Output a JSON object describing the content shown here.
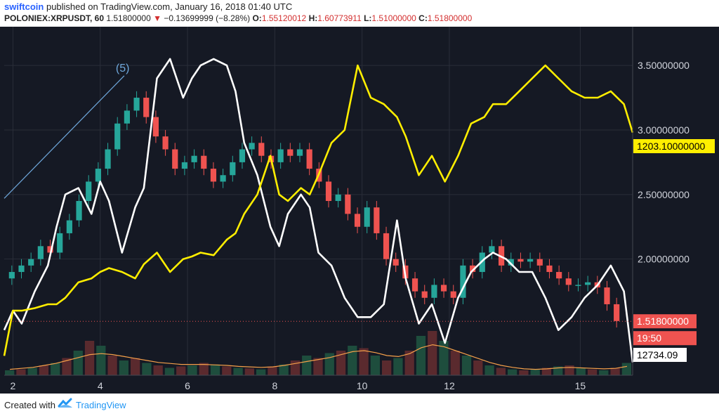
{
  "header": {
    "author": "swiftcoin",
    "published_text": "published on TradingView.com, January 16, 2018 01:40 UTC",
    "symbol": "POLONIEX:XRPUSDT, 60",
    "last_price": "1.51800000",
    "change_arrow": "▼",
    "change": "−0.13699999 (−8.28%)",
    "o_label": "O:",
    "o_value": "1.55120012",
    "h_label": "H:",
    "h_value": "1.60773911",
    "l_label": "L:",
    "l_value": "1.51000000",
    "c_label": "C:",
    "c_value": "1.51800000"
  },
  "footer": {
    "created_with": "Created with",
    "brand": "TradingView"
  },
  "colors": {
    "background": "#151924",
    "grid": "#2a2e39",
    "up": "#26a69a",
    "down": "#ef5350",
    "yellow": "#ffee00",
    "white": "#ffffff",
    "volume_ma": "#f5a04a",
    "annotation": "#6fa8dc"
  },
  "chart_data": {
    "type": "line",
    "x_ticks": [
      "2",
      "4",
      "6",
      "8",
      "10",
      "12",
      "15"
    ],
    "y_ticks": [
      "3.50000000",
      "3.00000000",
      "2.50000000",
      "2.00000000"
    ],
    "ylim": [
      1.1,
      3.8
    ],
    "xlim": [
      1.8,
      16.2
    ],
    "annotation": "(5)",
    "price_labels": {
      "yellow": "1203.10000000",
      "last": "1.51800000",
      "countdown": "19:50",
      "white": "12734.09"
    },
    "series": [
      {
        "color": "white",
        "x": [
          1.8,
          2.0,
          2.2,
          2.5,
          2.8,
          3.0,
          3.2,
          3.5,
          3.8,
          4.0,
          4.2,
          4.5,
          4.8,
          5.0,
          5.3,
          5.6,
          5.9,
          6.1,
          6.3,
          6.6,
          6.9,
          7.1,
          7.3,
          7.6,
          7.9,
          8.1,
          8.3,
          8.6,
          8.8,
          9.0,
          9.3,
          9.6,
          9.9,
          10.2,
          10.5,
          10.8,
          11.0,
          11.3,
          11.6,
          11.9,
          12.2,
          12.5,
          12.8,
          13.0,
          13.3,
          13.6,
          13.9,
          14.2,
          14.5,
          14.8,
          15.1,
          15.4,
          15.7,
          16.0,
          16.2
        ],
        "y": [
          1.45,
          1.6,
          1.5,
          1.75,
          1.95,
          2.25,
          2.5,
          2.55,
          2.35,
          2.6,
          2.45,
          2.05,
          2.4,
          2.55,
          3.4,
          3.55,
          3.25,
          3.4,
          3.5,
          3.55,
          3.5,
          3.3,
          2.9,
          2.65,
          2.25,
          2.1,
          2.35,
          2.5,
          2.4,
          2.05,
          1.95,
          1.7,
          1.55,
          1.55,
          1.65,
          2.3,
          1.85,
          1.5,
          1.65,
          1.35,
          1.7,
          1.9,
          2.0,
          2.05,
          2.0,
          1.9,
          1.9,
          1.7,
          1.45,
          1.55,
          1.7,
          1.8,
          1.95,
          1.75,
          1.2
        ]
      },
      {
        "color": "yellow",
        "x": [
          1.8,
          2.0,
          2.2,
          2.5,
          2.8,
          3.0,
          3.2,
          3.5,
          3.8,
          4.0,
          4.2,
          4.5,
          4.8,
          5.0,
          5.3,
          5.6,
          5.9,
          6.1,
          6.3,
          6.6,
          6.9,
          7.1,
          7.3,
          7.6,
          7.9,
          8.1,
          8.3,
          8.6,
          8.8,
          9.0,
          9.3,
          9.6,
          9.9,
          10.2,
          10.5,
          10.8,
          11.0,
          11.3,
          11.6,
          11.9,
          12.2,
          12.5,
          12.8,
          13.0,
          13.3,
          13.6,
          13.9,
          14.2,
          14.5,
          14.8,
          15.1,
          15.4,
          15.7,
          16.0,
          16.2
        ],
        "y": [
          1.25,
          1.6,
          1.6,
          1.62,
          1.65,
          1.65,
          1.7,
          1.82,
          1.85,
          1.9,
          1.93,
          1.9,
          1.85,
          1.96,
          2.05,
          1.9,
          2.0,
          2.02,
          2.05,
          2.03,
          2.15,
          2.2,
          2.35,
          2.5,
          2.8,
          2.5,
          2.45,
          2.55,
          2.5,
          2.65,
          2.9,
          3.0,
          3.5,
          3.25,
          3.2,
          3.1,
          2.95,
          2.65,
          2.8,
          2.6,
          2.8,
          3.05,
          3.1,
          3.2,
          3.2,
          3.3,
          3.4,
          3.5,
          3.4,
          3.3,
          3.25,
          3.25,
          3.3,
          3.2,
          2.98
        ]
      }
    ],
    "candles_close": [
      1.9,
      1.95,
      2.0,
      2.1,
      2.05,
      2.2,
      2.3,
      2.45,
      2.6,
      2.7,
      2.85,
      3.05,
      3.15,
      3.25,
      3.1,
      2.95,
      2.85,
      2.7,
      2.75,
      2.8,
      2.7,
      2.6,
      2.65,
      2.75,
      2.85,
      2.9,
      2.8,
      2.75,
      2.85,
      2.8,
      2.85,
      2.7,
      2.6,
      2.45,
      2.5,
      2.35,
      2.25,
      2.4,
      2.2,
      2.0,
      1.95,
      1.85,
      1.75,
      1.7,
      1.8,
      1.75,
      1.7,
      1.95,
      1.9,
      2.05,
      2.1,
      1.95,
      2.0,
      1.98,
      2.0,
      1.95,
      1.9,
      1.85,
      1.8,
      1.8,
      1.82,
      1.78,
      1.65,
      1.52
    ],
    "volume": [
      0.1,
      0.12,
      0.15,
      0.2,
      0.25,
      0.35,
      0.5,
      0.7,
      0.6,
      0.4,
      0.3,
      0.35,
      0.25,
      0.2,
      0.15,
      0.18,
      0.2,
      0.25,
      0.22,
      0.18,
      0.15,
      0.14,
      0.12,
      0.18,
      0.22,
      0.3,
      0.4,
      0.35,
      0.45,
      0.5,
      0.6,
      0.55,
      0.4,
      0.3,
      0.35,
      0.5,
      0.8,
      0.9,
      0.7,
      0.5,
      0.4,
      0.3,
      0.2,
      0.15,
      0.12,
      0.1,
      0.12,
      0.15,
      0.18,
      0.2,
      0.15,
      0.12,
      0.1,
      0.15,
      0.25
    ],
    "volume_ma": [
      0.12,
      0.14,
      0.16,
      0.2,
      0.24,
      0.3,
      0.36,
      0.42,
      0.44,
      0.42,
      0.38,
      0.34,
      0.3,
      0.26,
      0.24,
      0.22,
      0.22,
      0.22,
      0.21,
      0.2,
      0.18,
      0.17,
      0.16,
      0.17,
      0.2,
      0.24,
      0.28,
      0.32,
      0.36,
      0.42,
      0.48,
      0.5,
      0.46,
      0.4,
      0.38,
      0.44,
      0.56,
      0.62,
      0.58,
      0.5,
      0.42,
      0.34,
      0.26,
      0.2,
      0.16,
      0.13,
      0.12,
      0.13,
      0.15,
      0.16,
      0.15,
      0.14,
      0.13,
      0.14,
      0.18
    ]
  }
}
